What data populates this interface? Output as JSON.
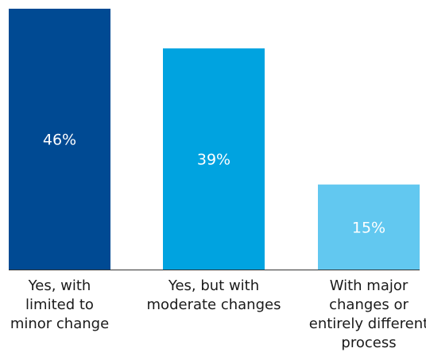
{
  "chart_data": {
    "type": "bar",
    "categories": [
      [
        "Yes, with",
        "limited to",
        "minor change"
      ],
      [
        "Yes, but with",
        "moderate changes"
      ],
      [
        "With major",
        "changes or",
        "entirely different",
        "process"
      ]
    ],
    "values": [
      46,
      39,
      15
    ],
    "value_labels": [
      "46%",
      "39%",
      "15%"
    ],
    "colors": [
      "#004a93",
      "#00a3e0",
      "#62c8f0"
    ],
    "ylim": [
      0,
      46
    ],
    "grid": false,
    "axis_color": "#333333"
  }
}
